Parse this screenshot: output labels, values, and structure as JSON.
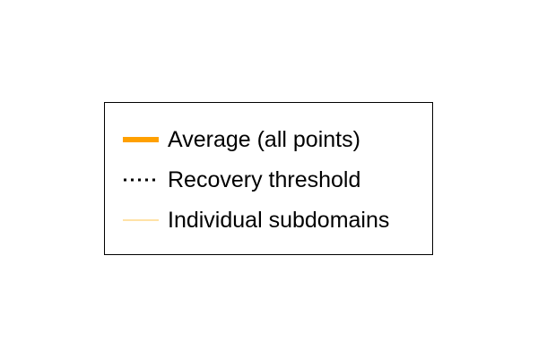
{
  "chart_data": {
    "type": "line",
    "legend": {
      "placement": "center",
      "entries": [
        {
          "label": "Average (all points)",
          "color": "#ffa000",
          "line_style": "solid",
          "weight": "thick"
        },
        {
          "label": "Recovery threshold",
          "color": "#000000",
          "line_style": "dotted",
          "weight": "medium"
        },
        {
          "label": "Individual subdomains",
          "color": "#ffd98a",
          "line_style": "solid",
          "weight": "thin"
        }
      ]
    }
  }
}
